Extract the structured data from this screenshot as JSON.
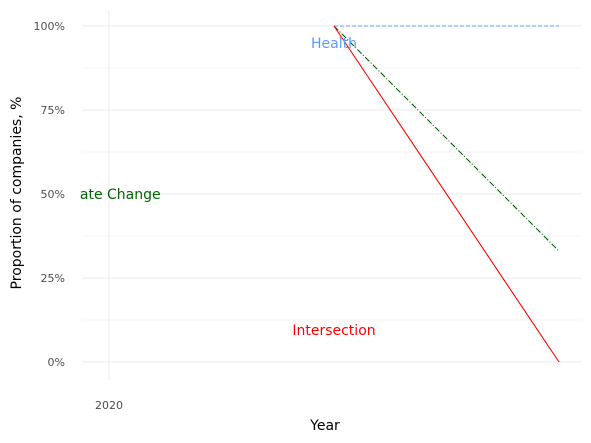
{
  "chart_data": {
    "type": "line",
    "title": "",
    "xlabel": "Year",
    "ylabel": "Proportion of companies, %",
    "x_ticks": [
      "2020"
    ],
    "y_ticks": [
      "0%",
      "25%",
      "50%",
      "75%",
      "100%"
    ],
    "ylim": [
      0,
      1
    ],
    "xlim": [
      2019.9,
      2022.1
    ],
    "grid": true,
    "legend": "none",
    "series": [
      {
        "name": "Health",
        "x": [
          2021,
          2022
        ],
        "y": [
          1.0,
          1.0
        ],
        "color": "#5b9bf5",
        "dash": "dashed"
      },
      {
        "name": "Climate Change",
        "x": [
          2021,
          2022
        ],
        "y": [
          1.0,
          0.33
        ],
        "color": "#006400",
        "dash": "dashdot"
      },
      {
        "name": "Intersection",
        "x": [
          2021,
          2022
        ],
        "y": [
          1.0,
          0.0
        ],
        "color": "#ff0000",
        "dash": "solid"
      }
    ],
    "annotations": [
      {
        "text": "Health",
        "x": 2021,
        "y": 0.95,
        "color": "#5b9bf5"
      },
      {
        "text": "ate Change",
        "x": 2020.05,
        "y": 0.5,
        "color": "#006400"
      },
      {
        "text": "Intersection",
        "x": 2021,
        "y": 0.095,
        "color": "#ff0000"
      }
    ]
  }
}
